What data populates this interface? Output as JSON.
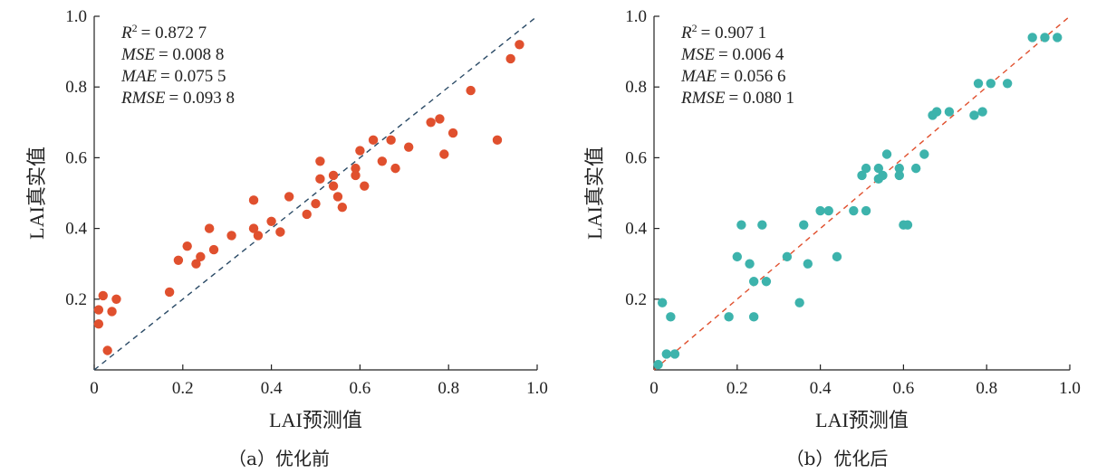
{
  "chart_data": [
    {
      "type": "scatter",
      "panel_caption": "（a）优化前",
      "xlabel": "LAI预测值",
      "ylabel": "LAI真实值",
      "xlim": [
        0,
        1.0
      ],
      "ylim": [
        0,
        1.0
      ],
      "xticks": [
        "0",
        "0.2",
        "0.4",
        "0.6",
        "0.8",
        "1.0"
      ],
      "yticks": [
        "0.2",
        "0.4",
        "0.6",
        "0.8",
        "1.0"
      ],
      "point_color": "#e0502e",
      "line_color": "#2a4a66",
      "reference_line": "y = x",
      "stats": [
        {
          "name": "R",
          "sup": "2",
          "value": "= 0.872 7"
        },
        {
          "name": "MSE",
          "sup": "",
          "value": "= 0.008 8"
        },
        {
          "name": "MAE",
          "sup": "",
          "value": "= 0.075 5"
        },
        {
          "name": "RMSE",
          "sup": "",
          "value": "= 0.093 8"
        }
      ],
      "points": [
        [
          0.01,
          0.17
        ],
        [
          0.01,
          0.13
        ],
        [
          0.02,
          0.21
        ],
        [
          0.03,
          0.055
        ],
        [
          0.04,
          0.165
        ],
        [
          0.05,
          0.2
        ],
        [
          0.17,
          0.22
        ],
        [
          0.19,
          0.31
        ],
        [
          0.21,
          0.35
        ],
        [
          0.23,
          0.3
        ],
        [
          0.24,
          0.32
        ],
        [
          0.26,
          0.4
        ],
        [
          0.27,
          0.34
        ],
        [
          0.31,
          0.38
        ],
        [
          0.36,
          0.48
        ],
        [
          0.36,
          0.4
        ],
        [
          0.37,
          0.38
        ],
        [
          0.4,
          0.42
        ],
        [
          0.42,
          0.39
        ],
        [
          0.44,
          0.49
        ],
        [
          0.48,
          0.44
        ],
        [
          0.5,
          0.47
        ],
        [
          0.51,
          0.59
        ],
        [
          0.51,
          0.54
        ],
        [
          0.54,
          0.55
        ],
        [
          0.54,
          0.52
        ],
        [
          0.55,
          0.49
        ],
        [
          0.56,
          0.46
        ],
        [
          0.59,
          0.57
        ],
        [
          0.59,
          0.55
        ],
        [
          0.6,
          0.62
        ],
        [
          0.61,
          0.52
        ],
        [
          0.63,
          0.65
        ],
        [
          0.65,
          0.59
        ],
        [
          0.67,
          0.65
        ],
        [
          0.68,
          0.57
        ],
        [
          0.71,
          0.63
        ],
        [
          0.76,
          0.7
        ],
        [
          0.78,
          0.71
        ],
        [
          0.79,
          0.61
        ],
        [
          0.81,
          0.67
        ],
        [
          0.85,
          0.79
        ],
        [
          0.91,
          0.65
        ],
        [
          0.94,
          0.88
        ],
        [
          0.96,
          0.92
        ]
      ]
    },
    {
      "type": "scatter",
      "panel_caption": "（b）优化后",
      "xlabel": "LAI预测值",
      "ylabel": "LAI真实值",
      "xlim": [
        0,
        1.0
      ],
      "ylim": [
        0,
        1.0
      ],
      "xticks": [
        "0",
        "0.2",
        "0.4",
        "0.6",
        "0.8",
        "1.0"
      ],
      "yticks": [
        "0.2",
        "0.4",
        "0.6",
        "0.8",
        "1.0"
      ],
      "point_color": "#3db3ac",
      "line_color": "#e0502e",
      "reference_line": "y = x",
      "stats": [
        {
          "name": "R",
          "sup": "2",
          "value": "= 0.907 1"
        },
        {
          "name": "MSE",
          "sup": "",
          "value": "= 0.006 4"
        },
        {
          "name": "MAE",
          "sup": "",
          "value": "= 0.056 6"
        },
        {
          "name": "RMSE",
          "sup": "",
          "value": "= 0.080 1"
        }
      ],
      "points": [
        [
          0.01,
          0.015
        ],
        [
          0.02,
          0.19
        ],
        [
          0.03,
          0.045
        ],
        [
          0.04,
          0.15
        ],
        [
          0.05,
          0.045
        ],
        [
          0.18,
          0.15
        ],
        [
          0.2,
          0.32
        ],
        [
          0.21,
          0.41
        ],
        [
          0.23,
          0.3
        ],
        [
          0.24,
          0.25
        ],
        [
          0.24,
          0.15
        ],
        [
          0.26,
          0.41
        ],
        [
          0.27,
          0.25
        ],
        [
          0.32,
          0.32
        ],
        [
          0.35,
          0.19
        ],
        [
          0.36,
          0.41
        ],
        [
          0.37,
          0.3
        ],
        [
          0.4,
          0.45
        ],
        [
          0.42,
          0.45
        ],
        [
          0.44,
          0.32
        ],
        [
          0.48,
          0.45
        ],
        [
          0.5,
          0.55
        ],
        [
          0.51,
          0.57
        ],
        [
          0.51,
          0.45
        ],
        [
          0.54,
          0.54
        ],
        [
          0.54,
          0.57
        ],
        [
          0.55,
          0.55
        ],
        [
          0.56,
          0.61
        ],
        [
          0.59,
          0.57
        ],
        [
          0.59,
          0.55
        ],
        [
          0.6,
          0.41
        ],
        [
          0.61,
          0.41
        ],
        [
          0.63,
          0.57
        ],
        [
          0.65,
          0.61
        ],
        [
          0.67,
          0.72
        ],
        [
          0.68,
          0.73
        ],
        [
          0.71,
          0.73
        ],
        [
          0.77,
          0.72
        ],
        [
          0.78,
          0.81
        ],
        [
          0.79,
          0.73
        ],
        [
          0.81,
          0.81
        ],
        [
          0.85,
          0.81
        ],
        [
          0.91,
          0.94
        ],
        [
          0.94,
          0.94
        ],
        [
          0.97,
          0.94
        ]
      ]
    }
  ]
}
